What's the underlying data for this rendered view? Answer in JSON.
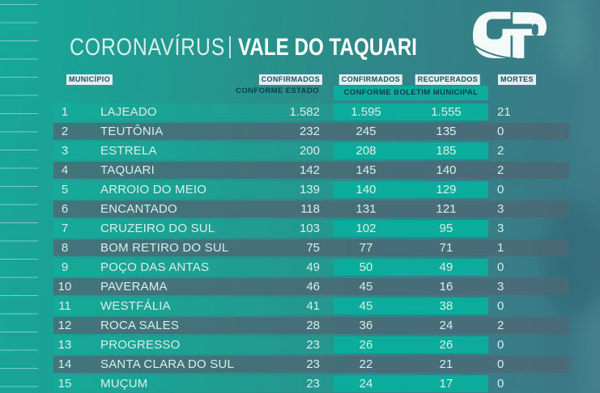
{
  "title": {
    "part1": "CORONAVÍRUS",
    "separator": "|",
    "part2": "VALE DO TAQUARI"
  },
  "logo": {
    "name": "GP"
  },
  "header": {
    "municipio": "MUNICÍPIO",
    "confirmados_estado": "CONFIRMADOS",
    "conforme_estado": "CONFORME ESTADO",
    "confirmados_municipal": "CONFIRMADOS",
    "recuperados": "RECUPERADOS",
    "conforme_boletim": "CONFORME BOLETIM MUNICIPAL",
    "mortes": "MORTES"
  },
  "rows": [
    {
      "rank": "1",
      "municipio": "LAJEADO",
      "confirmados_estado": "1.582",
      "confirmados_municipal": "1.595",
      "recuperados": "1.555",
      "mortes": "21"
    },
    {
      "rank": "2",
      "municipio": "TEUTÔNIA",
      "confirmados_estado": "232",
      "confirmados_municipal": "245",
      "recuperados": "135",
      "mortes": "0"
    },
    {
      "rank": "3",
      "municipio": "ESTRELA",
      "confirmados_estado": "200",
      "confirmados_municipal": "208",
      "recuperados": "185",
      "mortes": "2"
    },
    {
      "rank": "4",
      "municipio": "TAQUARI",
      "confirmados_estado": "142",
      "confirmados_municipal": "145",
      "recuperados": "140",
      "mortes": "2"
    },
    {
      "rank": "5",
      "municipio": "ARROIO DO MEIO",
      "confirmados_estado": "139",
      "confirmados_municipal": "140",
      "recuperados": "129",
      "mortes": "0"
    },
    {
      "rank": "6",
      "municipio": "ENCANTADO",
      "confirmados_estado": "118",
      "confirmados_municipal": "131",
      "recuperados": "121",
      "mortes": "3"
    },
    {
      "rank": "7",
      "municipio": "CRUZEIRO DO SUL",
      "confirmados_estado": "103",
      "confirmados_municipal": "102",
      "recuperados": "95",
      "mortes": "3"
    },
    {
      "rank": "8",
      "municipio": "BOM RETIRO DO SUL",
      "confirmados_estado": "75",
      "confirmados_municipal": "77",
      "recuperados": "71",
      "mortes": "1"
    },
    {
      "rank": "9",
      "municipio": "POÇO DAS ANTAS",
      "confirmados_estado": "49",
      "confirmados_municipal": "50",
      "recuperados": "49",
      "mortes": "0"
    },
    {
      "rank": "10",
      "municipio": "PAVERAMA",
      "confirmados_estado": "46",
      "confirmados_municipal": "45",
      "recuperados": "16",
      "mortes": "3"
    },
    {
      "rank": "11",
      "municipio": "WESTFÁLIA",
      "confirmados_estado": "41",
      "confirmados_municipal": "45",
      "recuperados": "38",
      "mortes": "0"
    },
    {
      "rank": "12",
      "municipio": "ROCA SALES",
      "confirmados_estado": "28",
      "confirmados_municipal": "36",
      "recuperados": "24",
      "mortes": "2"
    },
    {
      "rank": "13",
      "municipio": "PROGRESSO",
      "confirmados_estado": "23",
      "confirmados_municipal": "26",
      "recuperados": "26",
      "mortes": "0"
    },
    {
      "rank": "14",
      "municipio": "SANTA CLARA DO SUL",
      "confirmados_estado": "23",
      "confirmados_municipal": "22",
      "recuperados": "21",
      "mortes": "0"
    },
    {
      "rank": "15",
      "municipio": "MUÇUM",
      "confirmados_estado": "23",
      "confirmados_municipal": "24",
      "recuperados": "17",
      "mortes": "0"
    }
  ],
  "colors": {
    "background_left": "#16A99A",
    "background_right": "#3F7988",
    "bright_box": "#0CAC9C",
    "even_stripe": "#546E7A",
    "label_box_bg": "#E7EDEE",
    "label_text": "#0A5763",
    "row_text": "#E2F3EF",
    "title_text": "#FBFEFD"
  },
  "chart_data": {
    "type": "table",
    "title": "CORONAVÍRUS | VALE DO TAQUARI",
    "columns": [
      "MUNICÍPIO",
      "CONFIRMADOS CONFORME ESTADO",
      "CONFIRMADOS CONFORME BOLETIM MUNICIPAL",
      "RECUPERADOS CONFORME BOLETIM MUNICIPAL",
      "MORTES"
    ],
    "rows": [
      [
        "LAJEADO",
        1582,
        1595,
        1555,
        21
      ],
      [
        "TEUTÔNIA",
        232,
        245,
        135,
        0
      ],
      [
        "ESTRELA",
        200,
        208,
        185,
        2
      ],
      [
        "TAQUARI",
        142,
        145,
        140,
        2
      ],
      [
        "ARROIO DO MEIO",
        139,
        140,
        129,
        0
      ],
      [
        "ENCANTADO",
        118,
        131,
        121,
        3
      ],
      [
        "CRUZEIRO DO SUL",
        103,
        102,
        95,
        3
      ],
      [
        "BOM RETIRO DO SUL",
        75,
        77,
        71,
        1
      ],
      [
        "POÇO DAS ANTAS",
        49,
        50,
        49,
        0
      ],
      [
        "PAVERAMA",
        46,
        45,
        16,
        3
      ],
      [
        "WESTFÁLIA",
        41,
        45,
        38,
        0
      ],
      [
        "ROCA SALES",
        28,
        36,
        24,
        2
      ],
      [
        "PROGRESSO",
        23,
        26,
        26,
        0
      ],
      [
        "SANTA CLARA DO SUL",
        23,
        22,
        21,
        0
      ],
      [
        "MUÇUM",
        23,
        24,
        17,
        0
      ]
    ]
  }
}
